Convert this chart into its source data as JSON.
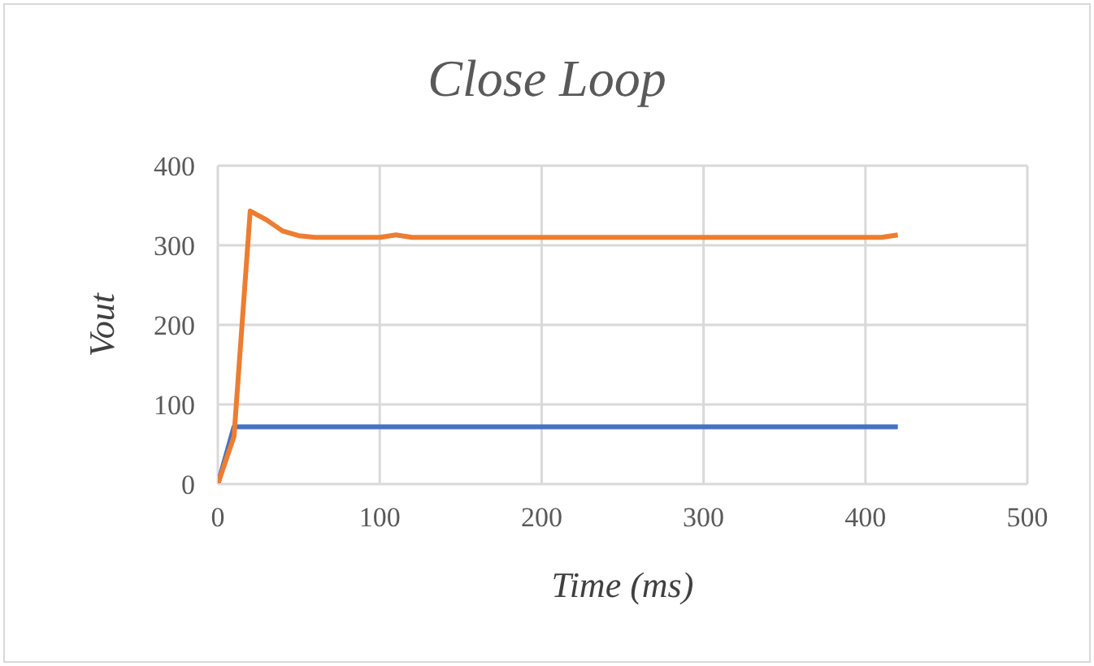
{
  "chart_data": {
    "type": "line",
    "title": "Close Loop",
    "xlabel": "Time (ms)",
    "ylabel": "Vout",
    "series": [
      {
        "color": "#4472c4",
        "x": [
          0,
          10,
          420
        ],
        "values": [
          0,
          72,
          72
        ]
      },
      {
        "color": "#ed7d31",
        "x": [
          0,
          10,
          20,
          30,
          40,
          50,
          60,
          100,
          110,
          120,
          410,
          420
        ],
        "values": [
          0,
          60,
          343,
          332,
          318,
          312,
          310,
          310,
          313,
          310,
          310,
          313
        ]
      }
    ],
    "xlim": [
      0,
      500
    ],
    "xticks": [
      0,
      100,
      200,
      300,
      400,
      500
    ],
    "ylim": [
      0,
      400
    ],
    "yticks": [
      0,
      100,
      200,
      300,
      400
    ],
    "grid": true,
    "legend": false,
    "marker": "none",
    "line_style": "solid"
  }
}
